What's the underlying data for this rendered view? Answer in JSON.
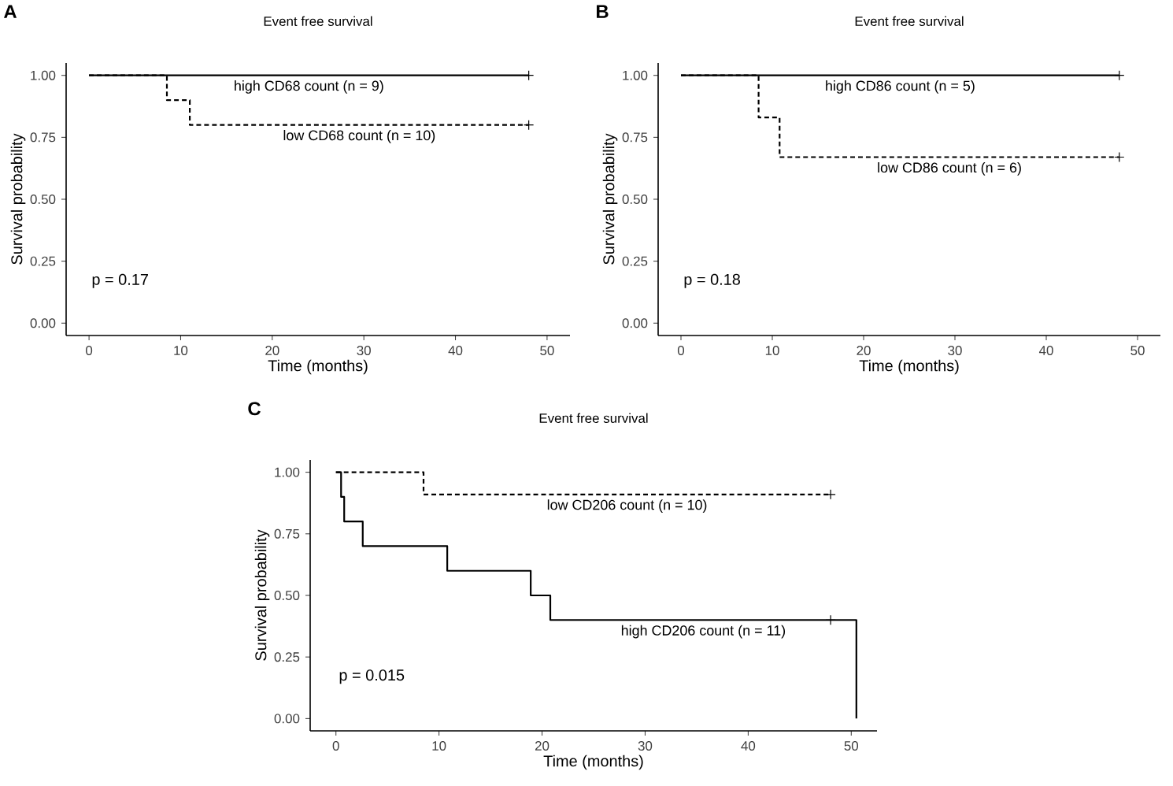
{
  "chart_data": [
    {
      "type": "step",
      "title": "Event free survival",
      "xlabel": "Time (months)",
      "ylabel": "Survival probability",
      "xlim": [
        -2.5,
        52.5
      ],
      "xticks": [
        0,
        10,
        20,
        30,
        40,
        50
      ],
      "ylim": [
        -0.05,
        1.05
      ],
      "yticks": [
        {
          "value": 0,
          "label": "0.00"
        },
        {
          "value": 0.25,
          "label": "0.25"
        },
        {
          "value": 0.5,
          "label": "0.50"
        },
        {
          "value": 0.75,
          "label": "0.75"
        },
        {
          "value": 1,
          "label": "1.00"
        }
      ],
      "grid": false,
      "annotations": [
        "A",
        "p = 0.17"
      ],
      "series": [
        {
          "name": "high CD68 count (n = 9)",
          "color": "#000000",
          "line_style": "solid",
          "x": [
            0,
            48
          ],
          "values": [
            1,
            1
          ]
        },
        {
          "name": "low CD68 count (n = 10)",
          "color": "#000000",
          "line_style": "dashed",
          "x": [
            0,
            8.5,
            11,
            48
          ],
          "values": [
            1,
            0.9,
            0.8,
            0.8
          ]
        },
        {
          "type": "scatter",
          "marker": "cross",
          "color": "#000000",
          "x": [
            48,
            48
          ],
          "values": [
            1,
            0.8
          ]
        }
      ]
    },
    {
      "type": "step",
      "title": "Event free survival",
      "xlabel": "Time (months)",
      "ylabel": "Survival probability",
      "xlim": [
        -2.5,
        52.5
      ],
      "xticks": [
        0,
        10,
        20,
        30,
        40,
        50
      ],
      "ylim": [
        -0.05,
        1.05
      ],
      "yticks": [
        {
          "value": 0,
          "label": "0.00"
        },
        {
          "value": 0.25,
          "label": "0.25"
        },
        {
          "value": 0.5,
          "label": "0.50"
        },
        {
          "value": 0.75,
          "label": "0.75"
        },
        {
          "value": 1,
          "label": "1.00"
        }
      ],
      "grid": false,
      "annotations": [
        "B",
        "p = 0.18"
      ],
      "series": [
        {
          "name": "high CD86 count (n = 5)",
          "color": "#000000",
          "line_style": "solid",
          "x": [
            0,
            48
          ],
          "values": [
            1,
            1
          ]
        },
        {
          "name": "low CD86 count (n = 6)",
          "color": "#000000",
          "line_style": "dashed",
          "x": [
            0,
            8.5,
            10.8,
            48
          ],
          "values": [
            1,
            0.83,
            0.67,
            0.67
          ]
        },
        {
          "type": "scatter",
          "marker": "cross",
          "color": "#000000",
          "x": [
            48,
            48
          ],
          "values": [
            1,
            0.67
          ]
        }
      ]
    },
    {
      "type": "step",
      "title": "Event free survival",
      "xlabel": "Time (months)",
      "ylabel": "Survival probability",
      "xlim": [
        -2.5,
        52.5
      ],
      "xticks": [
        0,
        10,
        20,
        30,
        40,
        50
      ],
      "ylim": [
        -0.05,
        1.05
      ],
      "yticks": [
        {
          "value": 0,
          "label": "0.00"
        },
        {
          "value": 0.25,
          "label": "0.25"
        },
        {
          "value": 0.5,
          "label": "0.50"
        },
        {
          "value": 0.75,
          "label": "0.75"
        },
        {
          "value": 1,
          "label": "1.00"
        }
      ],
      "grid": false,
      "annotations": [
        "C",
        "p = 0.015"
      ],
      "series": [
        {
          "name": "low CD206 count (n = 10)",
          "color": "#000000",
          "line_style": "dashed",
          "x": [
            0,
            8.5,
            48
          ],
          "values": [
            1,
            0.91,
            0.91
          ]
        },
        {
          "name": "high CD206 count (n = 11)",
          "color": "#000000",
          "line_style": "solid",
          "x": [
            0,
            0.5,
            0.8,
            2.6,
            10.8,
            18.9,
            20.8,
            50.5
          ],
          "values": [
            1,
            0.9,
            0.8,
            0.7,
            0.6,
            0.5,
            0.4,
            0
          ]
        },
        {
          "type": "scatter",
          "marker": "cross",
          "color": "#000000",
          "x": [
            48,
            48
          ],
          "values": [
            0.91,
            0.4
          ]
        }
      ]
    }
  ]
}
